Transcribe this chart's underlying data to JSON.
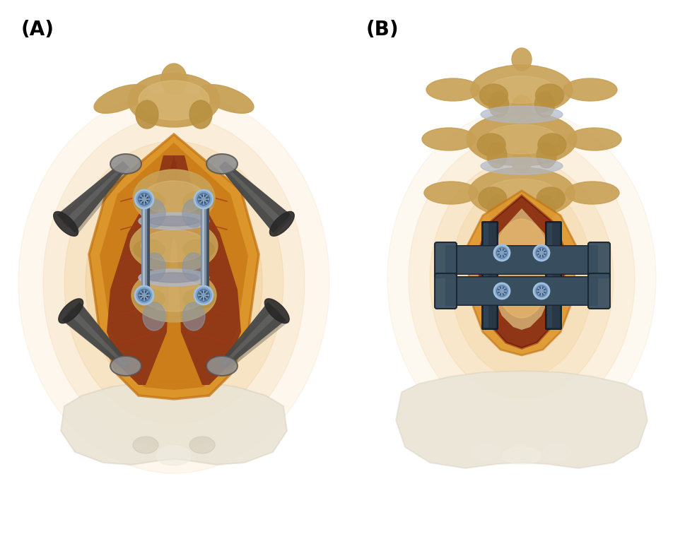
{
  "background_color": "#ffffff",
  "label_A": "(A)",
  "label_B": "(B)",
  "label_fontsize": 20,
  "label_fontweight": "bold",
  "fig_width": 9.86,
  "fig_height": 7.56,
  "bone_color": "#C8A055",
  "bone_light": "#DEC080",
  "bone_mid": "#B89040",
  "bone_shadow": "#A07830",
  "fat_color": "#D4820A",
  "fat_mid": "#C07010",
  "fat_light": "#E8A040",
  "fat_outer": "#F0C070",
  "muscle_color": "#8B3015",
  "muscle_mid": "#A03820",
  "muscle_light": "#C05030",
  "skin_color": "#E8A050",
  "glow_color": "#E8A030",
  "glow_light": "#F5C870",
  "retractor_dark": "#282828",
  "retractor_mid": "#484848",
  "retractor_light": "#707070",
  "retractor_silver": "#909090",
  "implant_dark": "#1A2530",
  "implant_mid": "#2A3A4A",
  "implant_light": "#3A4F60",
  "implant_silver": "#506070",
  "screw_dark": "#304050",
  "screw_mid": "#5070A0",
  "screw_light": "#80A0C0",
  "screw_ring": "#A0C0E0",
  "pelvis_color": "#E0D5C0",
  "pelvis_light": "#F0ECE0",
  "pelvis_shadow": "#C8BFAC",
  "disc_color": "#9090A0",
  "disc_light": "#B0B8C8"
}
